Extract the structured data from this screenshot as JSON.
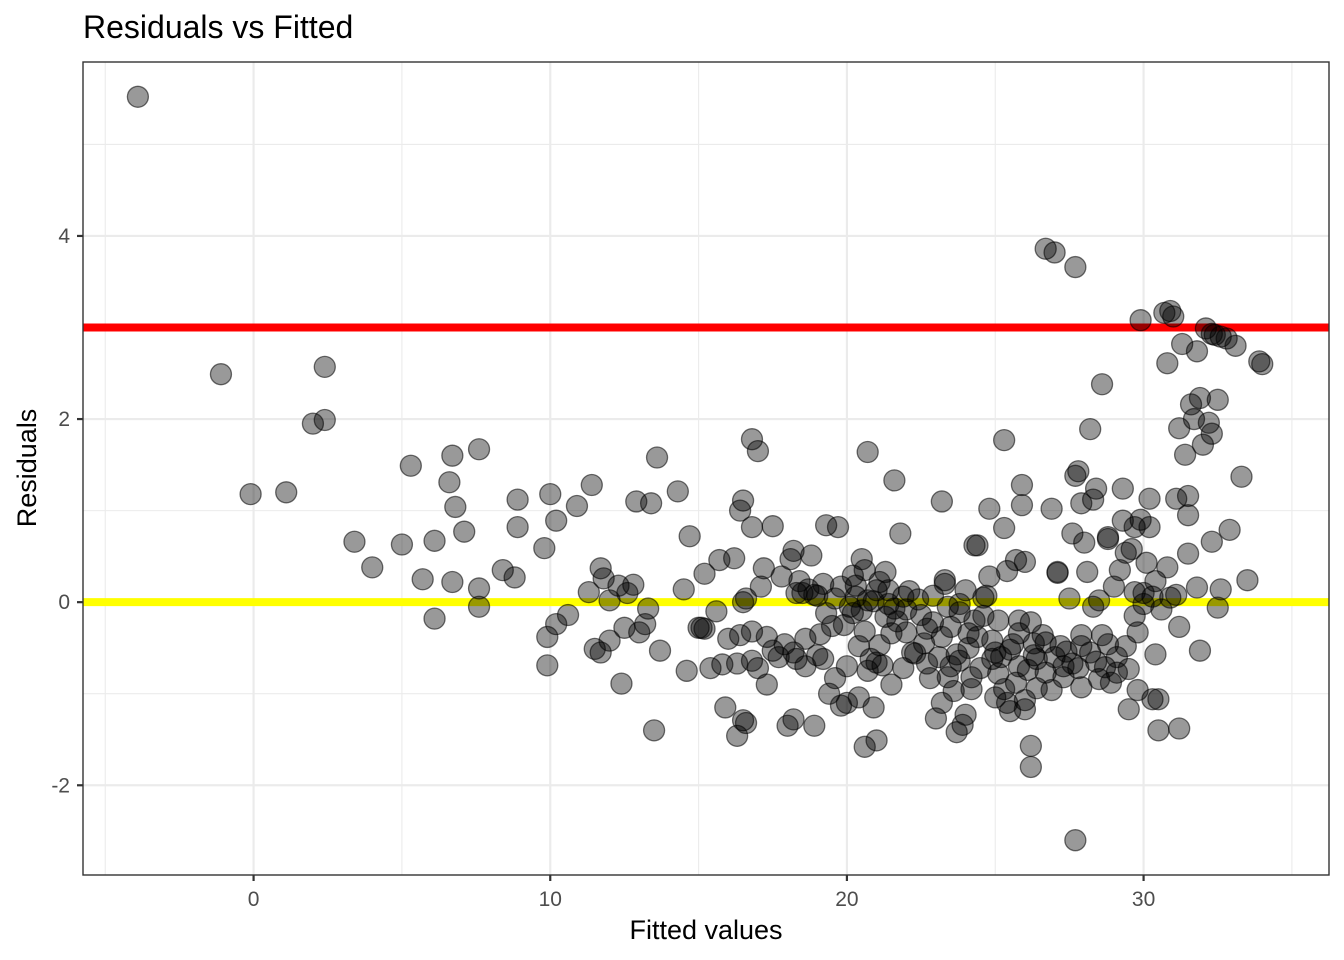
{
  "chart_data": {
    "type": "scatter",
    "title": "Residuals vs Fitted",
    "xlabel": "Fitted values",
    "ylabel": "Residuals",
    "xlim": [
      -5.75,
      36.25
    ],
    "ylim": [
      -2.98,
      5.9
    ],
    "x_ticks": [
      0,
      10,
      20,
      30
    ],
    "y_ticks": [
      -2,
      0,
      2,
      4
    ],
    "x_tick_labels": [
      "0",
      "10",
      "20",
      "30"
    ],
    "y_tick_labels": [
      "-2",
      "0",
      "2",
      "4"
    ],
    "grid": true,
    "reference_lines": [
      {
        "y": 3,
        "color": "#ff0000"
      },
      {
        "y": 0,
        "color": "#ffff00"
      }
    ],
    "point_color": "#000000",
    "point_alpha": 0.4,
    "points": [
      [
        -3.9,
        5.52
      ],
      [
        -1.1,
        2.49
      ],
      [
        -0.1,
        1.18
      ],
      [
        1.1,
        1.2
      ],
      [
        2.0,
        1.95
      ],
      [
        2.4,
        1.99
      ],
      [
        2.4,
        2.57
      ],
      [
        3.4,
        0.66
      ],
      [
        4.0,
        0.38
      ],
      [
        5.0,
        0.63
      ],
      [
        5.3,
        1.49
      ],
      [
        5.7,
        0.25
      ],
      [
        6.1,
        0.67
      ],
      [
        6.1,
        -0.18
      ],
      [
        6.6,
        1.31
      ],
      [
        6.7,
        1.6
      ],
      [
        6.8,
        1.04
      ],
      [
        6.7,
        0.22
      ],
      [
        7.1,
        0.77
      ],
      [
        7.6,
        1.67
      ],
      [
        7.6,
        0.15
      ],
      [
        7.6,
        -0.05
      ],
      [
        8.4,
        0.35
      ],
      [
        8.8,
        0.27
      ],
      [
        8.9,
        1.12
      ],
      [
        8.9,
        0.82
      ],
      [
        9.8,
        0.59
      ],
      [
        9.9,
        -0.38
      ],
      [
        9.9,
        -0.69
      ],
      [
        10.0,
        1.18
      ],
      [
        10.2,
        0.89
      ],
      [
        10.2,
        -0.24
      ],
      [
        10.6,
        -0.14
      ],
      [
        10.9,
        1.05
      ],
      [
        11.4,
        1.28
      ],
      [
        11.7,
        0.37
      ],
      [
        11.8,
        0.26
      ],
      [
        11.5,
        -0.51
      ],
      [
        11.7,
        -0.55
      ],
      [
        11.3,
        0.11
      ],
      [
        12.0,
        0.02
      ],
      [
        12.0,
        -0.42
      ],
      [
        12.3,
        0.18
      ],
      [
        12.5,
        -0.28
      ],
      [
        12.4,
        -0.89
      ],
      [
        12.6,
        0.1
      ],
      [
        12.8,
        0.19
      ],
      [
        13.0,
        -0.33
      ],
      [
        13.2,
        -0.24
      ],
      [
        12.9,
        1.1
      ],
      [
        13.4,
        1.08
      ],
      [
        13.3,
        -0.07
      ],
      [
        13.5,
        -1.4
      ],
      [
        13.6,
        1.58
      ],
      [
        13.7,
        -0.53
      ],
      [
        14.3,
        1.21
      ],
      [
        14.5,
        0.14
      ],
      [
        14.7,
        0.72
      ],
      [
        14.6,
        -0.75
      ],
      [
        15.2,
        0.31
      ],
      [
        15.0,
        -0.28
      ],
      [
        15.1,
        -0.28
      ],
      [
        15.2,
        -0.29
      ],
      [
        15.4,
        -0.72
      ],
      [
        15.6,
        -0.1
      ],
      [
        15.7,
        0.46
      ],
      [
        15.8,
        -0.68
      ],
      [
        15.9,
        -1.15
      ],
      [
        16.0,
        -0.4
      ],
      [
        16.2,
        0.48
      ],
      [
        16.3,
        -0.67
      ],
      [
        16.3,
        -1.46
      ],
      [
        16.5,
        1.11
      ],
      [
        16.4,
        1.0
      ],
      [
        16.4,
        -0.36
      ],
      [
        16.5,
        -1.29
      ],
      [
        16.6,
        -1.32
      ],
      [
        16.5,
        0.0
      ],
      [
        16.6,
        0.04
      ],
      [
        16.8,
        1.78
      ],
      [
        16.8,
        -0.32
      ],
      [
        16.8,
        -0.64
      ],
      [
        16.8,
        0.82
      ],
      [
        17.0,
        1.65
      ],
      [
        17.1,
        0.17
      ],
      [
        17.0,
        -0.72
      ],
      [
        17.2,
        0.37
      ],
      [
        17.3,
        -0.38
      ],
      [
        17.3,
        -0.9
      ],
      [
        17.5,
        0.83
      ],
      [
        17.5,
        -0.53
      ],
      [
        17.8,
        0.28
      ],
      [
        17.9,
        -0.46
      ],
      [
        18.0,
        -1.35
      ],
      [
        18.1,
        0.47
      ],
      [
        18.2,
        0.56
      ],
      [
        18.2,
        -1.28
      ],
      [
        18.3,
        0.1
      ],
      [
        18.3,
        -0.62
      ],
      [
        18.5,
        0.1
      ],
      [
        18.6,
        -0.7
      ],
      [
        18.7,
        0.14
      ],
      [
        18.6,
        -0.4
      ],
      [
        18.9,
        -1.35
      ],
      [
        18.8,
        0.51
      ],
      [
        19.0,
        0.07
      ],
      [
        19.1,
        -0.35
      ],
      [
        19.2,
        -0.62
      ],
      [
        19.2,
        0.2
      ],
      [
        19.3,
        0.84
      ],
      [
        19.4,
        -1.0
      ],
      [
        19.5,
        -0.26
      ],
      [
        19.6,
        -0.83
      ],
      [
        19.7,
        0.82
      ],
      [
        19.8,
        0.17
      ],
      [
        19.8,
        -1.13
      ],
      [
        20.0,
        -1.1
      ],
      [
        20.0,
        -0.7
      ],
      [
        20.2,
        0.29
      ],
      [
        20.2,
        -0.12
      ],
      [
        20.3,
        0.06
      ],
      [
        20.4,
        -0.48
      ],
      [
        20.4,
        -1.04
      ],
      [
        20.5,
        0.47
      ],
      [
        20.5,
        -0.09
      ],
      [
        20.7,
        1.64
      ],
      [
        20.6,
        0.35
      ],
      [
        20.6,
        -1.58
      ],
      [
        20.7,
        0.02
      ],
      [
        20.7,
        -0.75
      ],
      [
        20.9,
        -1.15
      ],
      [
        21.0,
        -1.51
      ],
      [
        21.0,
        0.13
      ],
      [
        21.1,
        -0.47
      ],
      [
        21.2,
        -0.69
      ],
      [
        21.3,
        0.33
      ],
      [
        21.3,
        -0.16
      ],
      [
        21.4,
        0.13
      ],
      [
        21.5,
        -0.34
      ],
      [
        21.6,
        -0.07
      ],
      [
        21.5,
        -0.9
      ],
      [
        21.6,
        1.33
      ],
      [
        21.8,
        0.75
      ],
      [
        21.9,
        0.06
      ],
      [
        21.9,
        -0.72
      ],
      [
        22.0,
        -0.33
      ],
      [
        22.1,
        0.12
      ],
      [
        22.3,
        -0.56
      ],
      [
        22.5,
        -0.14
      ],
      [
        22.7,
        -0.29
      ],
      [
        22.8,
        -0.83
      ],
      [
        22.9,
        0.07
      ],
      [
        23.0,
        -1.27
      ],
      [
        23.2,
        1.1
      ],
      [
        23.1,
        -0.6
      ],
      [
        23.2,
        -1.1
      ],
      [
        23.3,
        0.2
      ],
      [
        23.3,
        0.24
      ],
      [
        23.4,
        -0.05
      ],
      [
        23.5,
        -0.7
      ],
      [
        23.6,
        -0.97
      ],
      [
        23.7,
        -1.42
      ],
      [
        23.7,
        -0.57
      ],
      [
        23.8,
        -0.11
      ],
      [
        23.9,
        -1.34
      ],
      [
        24.0,
        -1.23
      ],
      [
        24.1,
        -0.34
      ],
      [
        24.0,
        0.13
      ],
      [
        24.2,
        -0.82
      ],
      [
        24.3,
        0.62
      ],
      [
        24.4,
        0.62
      ],
      [
        24.3,
        -0.2
      ],
      [
        24.5,
        -0.72
      ],
      [
        24.7,
        0.07
      ],
      [
        24.8,
        1.02
      ],
      [
        24.8,
        0.28
      ],
      [
        24.9,
        -0.62
      ],
      [
        25.0,
        -1.04
      ],
      [
        25.1,
        -0.2
      ],
      [
        25.1,
        -0.78
      ],
      [
        25.3,
        1.77
      ],
      [
        25.3,
        0.81
      ],
      [
        25.4,
        0.34
      ],
      [
        25.4,
        -1.1
      ],
      [
        25.5,
        -1.19
      ],
      [
        25.6,
        -0.46
      ],
      [
        25.7,
        0.46
      ],
      [
        25.7,
        -0.88
      ],
      [
        25.8,
        -0.2
      ],
      [
        25.8,
        -0.7
      ],
      [
        25.9,
        1.28
      ],
      [
        25.9,
        1.06
      ],
      [
        26.0,
        0.44
      ],
      [
        26.0,
        -1.17
      ],
      [
        26.2,
        -1.8
      ],
      [
        26.2,
        -1.57
      ],
      [
        26.2,
        -0.22
      ],
      [
        26.3,
        -0.58
      ],
      [
        26.4,
        -0.94
      ],
      [
        26.6,
        -0.36
      ],
      [
        26.7,
        -0.44
      ],
      [
        26.7,
        3.86
      ],
      [
        26.9,
        1.02
      ],
      [
        26.9,
        -0.96
      ],
      [
        27.0,
        3.82
      ],
      [
        27.1,
        0.32
      ],
      [
        27.1,
        0.33
      ],
      [
        27.2,
        -0.48
      ],
      [
        27.3,
        -0.82
      ],
      [
        27.4,
        -0.54
      ],
      [
        27.5,
        0.04
      ],
      [
        27.6,
        0.75
      ],
      [
        27.7,
        1.38
      ],
      [
        27.7,
        3.66
      ],
      [
        27.7,
        -2.6
      ],
      [
        27.8,
        1.43
      ],
      [
        27.8,
        -0.72
      ],
      [
        27.9,
        -0.36
      ],
      [
        27.9,
        1.08
      ],
      [
        28.0,
        0.65
      ],
      [
        28.1,
        0.33
      ],
      [
        28.2,
        1.89
      ],
      [
        28.3,
        1.12
      ],
      [
        28.4,
        1.24
      ],
      [
        28.4,
        -0.65
      ],
      [
        28.5,
        0.02
      ],
      [
        28.6,
        2.38
      ],
      [
        28.6,
        -0.36
      ],
      [
        28.7,
        -0.71
      ],
      [
        28.8,
        0.69
      ],
      [
        28.8,
        0.71
      ],
      [
        28.9,
        -0.88
      ],
      [
        29.0,
        0.17
      ],
      [
        29.1,
        -0.77
      ],
      [
        29.2,
        0.35
      ],
      [
        29.3,
        1.24
      ],
      [
        29.3,
        0.89
      ],
      [
        29.4,
        0.54
      ],
      [
        29.5,
        -0.73
      ],
      [
        29.5,
        -1.17
      ],
      [
        29.6,
        0.58
      ],
      [
        29.7,
        0.82
      ],
      [
        29.7,
        0.11
      ],
      [
        29.8,
        -0.33
      ],
      [
        29.8,
        -0.96
      ],
      [
        29.9,
        3.08
      ],
      [
        29.9,
        0.9
      ],
      [
        30.0,
        0.1
      ],
      [
        30.1,
        0.43
      ],
      [
        30.2,
        1.13
      ],
      [
        30.2,
        0.82
      ],
      [
        30.3,
        -1.06
      ],
      [
        30.4,
        -0.57
      ],
      [
        30.4,
        0.23
      ],
      [
        30.5,
        -1.4
      ],
      [
        30.5,
        -1.06
      ],
      [
        30.7,
        3.16
      ],
      [
        30.8,
        2.61
      ],
      [
        30.8,
        0.38
      ],
      [
        30.9,
        3.18
      ],
      [
        31.0,
        3.12
      ],
      [
        31.1,
        0.08
      ],
      [
        31.1,
        1.13
      ],
      [
        31.2,
        1.9
      ],
      [
        31.2,
        -0.27
      ],
      [
        31.2,
        -1.38
      ],
      [
        31.3,
        2.82
      ],
      [
        31.4,
        1.61
      ],
      [
        31.5,
        0.53
      ],
      [
        31.5,
        0.95
      ],
      [
        31.5,
        1.16
      ],
      [
        31.6,
        2.16
      ],
      [
        31.7,
        2.0
      ],
      [
        31.8,
        2.74
      ],
      [
        31.9,
        2.23
      ],
      [
        31.8,
        0.16
      ],
      [
        31.9,
        -0.53
      ],
      [
        32.0,
        1.72
      ],
      [
        32.1,
        2.99
      ],
      [
        32.2,
        1.96
      ],
      [
        32.3,
        2.93
      ],
      [
        32.3,
        1.84
      ],
      [
        32.3,
        0.66
      ],
      [
        32.4,
        2.92
      ],
      [
        32.5,
        2.21
      ],
      [
        32.5,
        -0.06
      ],
      [
        32.6,
        0.14
      ],
      [
        32.6,
        2.9
      ],
      [
        32.8,
        2.88
      ],
      [
        32.9,
        0.79
      ],
      [
        33.1,
        2.8
      ],
      [
        33.3,
        1.37
      ],
      [
        33.5,
        0.24
      ],
      [
        33.9,
        2.63
      ],
      [
        34.0,
        2.6
      ],
      [
        18.4,
        0.23
      ],
      [
        18.9,
        0.08
      ],
      [
        19.3,
        -0.12
      ],
      [
        19.6,
        0.04
      ],
      [
        19.9,
        -0.25
      ],
      [
        20.1,
        -0.05
      ],
      [
        20.3,
        0.18
      ],
      [
        20.6,
        -0.32
      ],
      [
        20.9,
        0.01
      ],
      [
        21.1,
        0.22
      ],
      [
        21.4,
        -0.02
      ],
      [
        21.7,
        -0.21
      ],
      [
        22.0,
        -0.08
      ],
      [
        22.4,
        0.03
      ],
      [
        22.6,
        -0.45
      ],
      [
        22.9,
        -0.22
      ],
      [
        23.2,
        -0.38
      ],
      [
        23.5,
        -0.27
      ],
      [
        23.8,
        -0.64
      ],
      [
        24.1,
        -0.5
      ],
      [
        24.4,
        -0.38
      ],
      [
        24.6,
        -0.15
      ],
      [
        24.9,
        -0.42
      ],
      [
        25.2,
        -0.6
      ],
      [
        25.5,
        -0.52
      ],
      [
        25.8,
        -0.34
      ],
      [
        26.1,
        -0.74
      ],
      [
        26.4,
        -0.62
      ],
      [
        26.7,
        -0.77
      ],
      [
        27.0,
        -0.6
      ],
      [
        27.3,
        -0.7
      ],
      [
        27.6,
        -0.67
      ],
      [
        27.9,
        -0.93
      ],
      [
        28.2,
        -0.55
      ],
      [
        28.5,
        -0.84
      ],
      [
        28.8,
        -0.46
      ],
      [
        29.1,
        -0.6
      ],
      [
        29.4,
        -0.48
      ],
      [
        29.7,
        -0.15
      ],
      [
        30.0,
        -0.02
      ],
      [
        30.3,
        0.06
      ],
      [
        30.6,
        -0.08
      ],
      [
        30.9,
        0.05
      ],
      [
        22.2,
        -0.55
      ],
      [
        22.7,
        -0.67
      ],
      [
        23.4,
        -0.82
      ],
      [
        24.2,
        -0.95
      ],
      [
        25.3,
        -0.95
      ],
      [
        26.0,
        -1.07
      ],
      [
        25.0,
        -0.55
      ],
      [
        23.8,
        -0.02
      ],
      [
        19.0,
        -0.58
      ],
      [
        18.2,
        -0.55
      ],
      [
        17.7,
        -0.6
      ],
      [
        20.8,
        -0.62
      ],
      [
        21.0,
        -0.66
      ],
      [
        24.6,
        0.05
      ],
      [
        28.3,
        -0.05
      ],
      [
        26.3,
        -0.45
      ],
      [
        27.9,
        -0.48
      ]
    ]
  }
}
